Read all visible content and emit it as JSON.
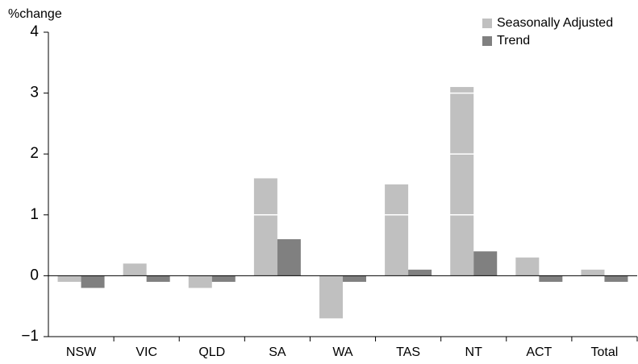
{
  "chart_data": {
    "type": "bar",
    "ylabel": "%change",
    "categories": [
      "NSW",
      "VIC",
      "QLD",
      "SA",
      "WA",
      "TAS",
      "NT",
      "ACT",
      "Total"
    ],
    "series": [
      {
        "name": "Seasonally Adjusted",
        "color": "#c0c0c0",
        "values": [
          -0.1,
          0.2,
          -0.2,
          1.6,
          -0.7,
          1.5,
          3.1,
          0.3,
          0.1
        ]
      },
      {
        "name": "Trend",
        "color": "#808080",
        "values": [
          -0.2,
          -0.1,
          -0.1,
          0.6,
          -0.1,
          0.1,
          0.4,
          -0.1,
          -0.1
        ]
      }
    ],
    "ylim": [
      -1,
      4
    ],
    "yticks": [
      {
        "value": -1,
        "label": "−1"
      },
      0,
      1,
      2,
      3,
      4
    ],
    "grid": true,
    "grid_color": "#ffffff",
    "legend": "top-right"
  }
}
